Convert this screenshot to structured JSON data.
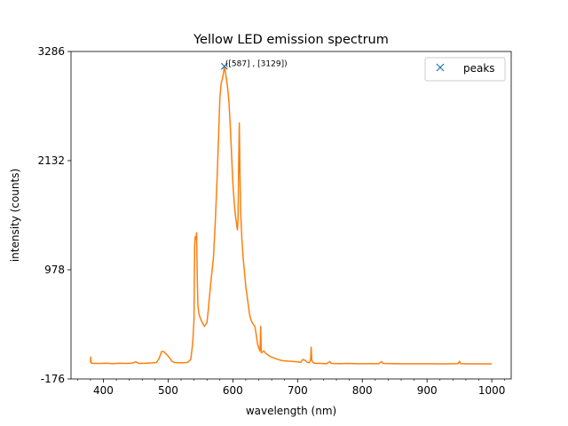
{
  "chart_data": {
    "type": "line",
    "title": "Yellow LED emission spectrum",
    "xlabel": "wavelength (nm)",
    "ylabel": "intensity (counts)",
    "xlim": [
      350,
      1030
    ],
    "ylim": [
      -176,
      3286
    ],
    "x_ticks": [
      400,
      500,
      600,
      700,
      800,
      900,
      1000
    ],
    "x_minor_step": 20,
    "y_ticks": [
      -176,
      978,
      2132,
      3286
    ],
    "grid": false,
    "legend": {
      "position": "top-right",
      "entries": [
        "peaks"
      ]
    },
    "series": [
      {
        "name": "",
        "color": "#ff7f0e",
        "points": [
          [
            380,
            2
          ],
          [
            380.5,
            55
          ],
          [
            381,
            -8
          ],
          [
            386,
            -12
          ],
          [
            395,
            -12
          ],
          [
            405,
            -10
          ],
          [
            415,
            -14
          ],
          [
            425,
            -10
          ],
          [
            435,
            -12
          ],
          [
            445,
            -8
          ],
          [
            450,
            5
          ],
          [
            455,
            -12
          ],
          [
            465,
            -10
          ],
          [
            475,
            -6
          ],
          [
            482,
            -2
          ],
          [
            486,
            40
          ],
          [
            490,
            115
          ],
          [
            494,
            110
          ],
          [
            498,
            80
          ],
          [
            502,
            50
          ],
          [
            506,
            10
          ],
          [
            510,
            -2
          ],
          [
            520,
            -5
          ],
          [
            530,
            -2
          ],
          [
            535,
            30
          ],
          [
            538,
            200
          ],
          [
            540,
            450
          ],
          [
            541,
            1230
          ],
          [
            542,
            1330
          ],
          [
            543,
            1300
          ],
          [
            544,
            1370
          ],
          [
            545,
            900
          ],
          [
            546,
            600
          ],
          [
            548,
            500
          ],
          [
            552,
            430
          ],
          [
            556,
            380
          ],
          [
            560,
            420
          ],
          [
            562,
            550
          ],
          [
            564,
            700
          ],
          [
            566,
            850
          ],
          [
            570,
            1100
          ],
          [
            573,
            1500
          ],
          [
            576,
            2000
          ],
          [
            578,
            2400
          ],
          [
            580,
            2800
          ],
          [
            582,
            2950
          ],
          [
            584,
            3000
          ],
          [
            586,
            3080
          ],
          [
            587,
            3129
          ],
          [
            588,
            3090
          ],
          [
            590,
            3000
          ],
          [
            592,
            2900
          ],
          [
            594,
            2750
          ],
          [
            596,
            2500
          ],
          [
            598,
            2200
          ],
          [
            600,
            1900
          ],
          [
            602,
            1700
          ],
          [
            604,
            1550
          ],
          [
            606,
            1450
          ],
          [
            607,
            1400
          ],
          [
            608,
            1500
          ],
          [
            609,
            2100
          ],
          [
            610,
            2530
          ],
          [
            611,
            2000
          ],
          [
            612,
            1600
          ],
          [
            614,
            1300
          ],
          [
            616,
            1100
          ],
          [
            618,
            950
          ],
          [
            620,
            800
          ],
          [
            622,
            700
          ],
          [
            624,
            600
          ],
          [
            626,
            500
          ],
          [
            628,
            450
          ],
          [
            630,
            420
          ],
          [
            632,
            400
          ],
          [
            634,
            380
          ],
          [
            636,
            300
          ],
          [
            638,
            200
          ],
          [
            640,
            150
          ],
          [
            642,
            120
          ],
          [
            643,
            380
          ],
          [
            644,
            100
          ],
          [
            646,
            110
          ],
          [
            648,
            120
          ],
          [
            650,
            100
          ],
          [
            654,
            80
          ],
          [
            658,
            60
          ],
          [
            662,
            50
          ],
          [
            666,
            40
          ],
          [
            670,
            30
          ],
          [
            675,
            20
          ],
          [
            680,
            15
          ],
          [
            690,
            10
          ],
          [
            700,
            5
          ],
          [
            705,
            0
          ],
          [
            708,
            30
          ],
          [
            712,
            20
          ],
          [
            715,
            0
          ],
          [
            718,
            -5
          ],
          [
            720,
            20
          ],
          [
            721,
            160
          ],
          [
            722,
            20
          ],
          [
            725,
            -10
          ],
          [
            735,
            -12
          ],
          [
            745,
            -14
          ],
          [
            750,
            8
          ],
          [
            752,
            -12
          ],
          [
            765,
            -14
          ],
          [
            780,
            -12
          ],
          [
            795,
            -15
          ],
          [
            810,
            -14
          ],
          [
            825,
            -15
          ],
          [
            830,
            8
          ],
          [
            832,
            -12
          ],
          [
            845,
            -14
          ],
          [
            860,
            -15
          ],
          [
            875,
            -15
          ],
          [
            890,
            -15
          ],
          [
            905,
            -15
          ],
          [
            920,
            -16
          ],
          [
            935,
            -16
          ],
          [
            948,
            -14
          ],
          [
            950,
            10
          ],
          [
            952,
            -14
          ],
          [
            965,
            -16
          ],
          [
            980,
            -16
          ],
          [
            990,
            -16
          ],
          [
            1000,
            -16
          ]
        ]
      },
      {
        "name": "peaks",
        "color": "#1f77b4",
        "marker": "x",
        "points": [
          [
            587,
            3129
          ]
        ]
      }
    ],
    "annotations": [
      {
        "text": "([587] , [3129])",
        "x": 587,
        "y": 3129
      }
    ]
  }
}
